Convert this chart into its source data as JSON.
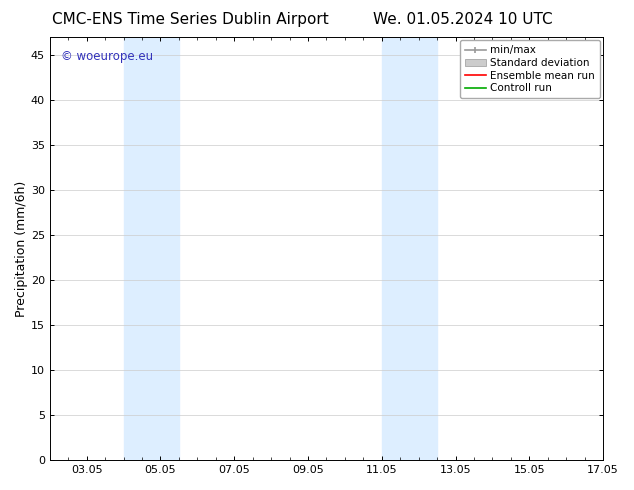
{
  "title_left": "CMC-ENS Time Series Dublin Airport",
  "title_right": "We. 01.05.2024 10 UTC",
  "ylabel": "Precipitation (mm/6h)",
  "watermark": "© woeurope.eu",
  "watermark_color": "#3333bb",
  "ylim": [
    0,
    47
  ],
  "yticks": [
    0,
    5,
    10,
    15,
    20,
    25,
    30,
    35,
    40,
    45
  ],
  "xlim": [
    0.0,
    15.0
  ],
  "xtick_labels": [
    "03.05",
    "05.05",
    "07.05",
    "09.05",
    "11.05",
    "13.05",
    "15.05",
    "17.05"
  ],
  "xtick_positions": [
    1.0,
    3.0,
    5.0,
    7.0,
    9.0,
    11.0,
    13.0,
    15.0
  ],
  "shaded_bands": [
    {
      "x_start": 2.0,
      "x_end": 3.5
    },
    {
      "x_start": 9.0,
      "x_end": 10.5
    }
  ],
  "shaded_color": "#ddeeff",
  "legend_labels": [
    "min/max",
    "Standard deviation",
    "Ensemble mean run",
    "Controll run"
  ],
  "minmax_color": "#999999",
  "std_color": "#cccccc",
  "ens_color": "#ff0000",
  "ctrl_color": "#00aa00",
  "bg_color": "#ffffff",
  "title_fontsize": 11,
  "axis_fontsize": 9,
  "tick_fontsize": 8,
  "legend_fontsize": 7.5
}
